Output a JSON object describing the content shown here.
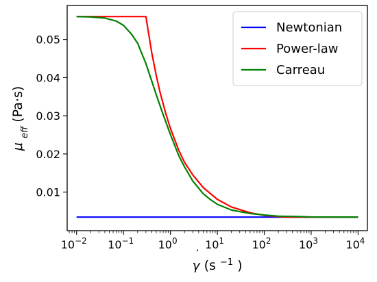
{
  "chart_data": {
    "type": "line",
    "xscale": "log",
    "xlabel": "γ̇ (s⁻¹)",
    "xlabel_parts": {
      "gamma": "γ",
      "dot": "˙",
      "unit_open": " (s",
      "exp": "−1",
      "unit_close": ")"
    },
    "ylabel": "μeff (Pa·s)",
    "ylabel_parts": {
      "mu": "μ",
      "sub": "eff",
      "unit": " (Pa·s)"
    },
    "xlim": [
      0.0063,
      15800
    ],
    "ylim": [
      -0.0001,
      0.0589
    ],
    "x_ticks": [
      {
        "value": 0.01,
        "base": "10",
        "exp": "−2"
      },
      {
        "value": 0.1,
        "base": "10",
        "exp": "−1"
      },
      {
        "value": 1,
        "base": "10",
        "exp": "0"
      },
      {
        "value": 10,
        "base": "10",
        "exp": "1"
      },
      {
        "value": 100,
        "base": "10",
        "exp": "2"
      },
      {
        "value": 1000,
        "base": "10",
        "exp": "3"
      },
      {
        "value": 10000,
        "base": "10",
        "exp": "4"
      }
    ],
    "y_ticks": [
      {
        "value": 0.01,
        "label": "0.01"
      },
      {
        "value": 0.02,
        "label": "0.02"
      },
      {
        "value": 0.03,
        "label": "0.03"
      },
      {
        "value": 0.04,
        "label": "0.04"
      },
      {
        "value": 0.05,
        "label": "0.05"
      }
    ],
    "grid": false,
    "legend_position": "top-right",
    "series": [
      {
        "name": "Newtonian",
        "color": "#0000ff",
        "x": [
          0.01,
          10000
        ],
        "y": [
          0.00345,
          0.00345
        ]
      },
      {
        "name": "Power-law",
        "color": "#ff0000",
        "x": [
          0.01,
          0.15,
          0.3,
          0.4,
          0.5,
          0.6,
          0.8,
          1,
          1.5,
          2,
          3,
          5,
          10,
          20,
          50,
          100,
          200,
          300,
          400,
          1000,
          10000
        ],
        "y": [
          0.056,
          0.056,
          0.056,
          0.0465,
          0.0405,
          0.0362,
          0.0305,
          0.0267,
          0.021,
          0.0178,
          0.0145,
          0.0112,
          0.0081,
          0.0061,
          0.0046,
          0.0039,
          0.0036,
          0.00345,
          0.00345,
          0.00345,
          0.00345
        ]
      },
      {
        "name": "Carreau",
        "color": "#008000",
        "x": [
          0.01,
          0.02,
          0.04,
          0.07,
          0.1,
          0.15,
          0.2,
          0.3,
          0.5,
          0.7,
          1,
          1.5,
          2,
          3,
          5,
          7,
          10,
          20,
          50,
          100,
          200,
          500,
          1000,
          10000
        ],
        "y": [
          0.056,
          0.0559,
          0.0556,
          0.0548,
          0.0537,
          0.0513,
          0.049,
          0.0437,
          0.0355,
          0.0303,
          0.0251,
          0.0196,
          0.0166,
          0.0129,
          0.0096,
          0.0081,
          0.0068,
          0.0053,
          0.0044,
          0.004,
          0.0037,
          0.0036,
          0.0035,
          0.00345
        ]
      }
    ]
  }
}
